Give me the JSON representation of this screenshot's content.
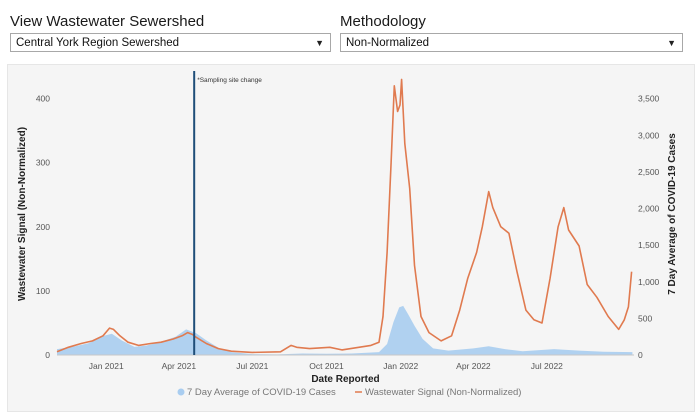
{
  "controls": {
    "sewershed_label": "View Wastewater Sewershed",
    "sewershed_value": "Central York Region Sewershed",
    "methodology_label": "Methodology",
    "methodology_value": "Non-Normalized"
  },
  "colors": {
    "cases": "#a9cdf0",
    "wastewater": "#e07a4f",
    "event_line": "#1f4e79"
  },
  "chart_data": {
    "type": "line",
    "title": "",
    "xlabel": "Date Reported",
    "ylabel": "Wastewater Signal (Non-Normalized)",
    "y2label": "7 Day Average of COVID-19 Cases",
    "x_ticks": [
      "Jan 2021",
      "Apr 2021",
      "Jul 2021",
      "Oct 2021",
      "Jan 2022",
      "Apr 2022",
      "Jul 2022"
    ],
    "y_ticks": [
      "0",
      "100",
      "200",
      "300",
      "400"
    ],
    "y2_ticks": [
      "0",
      "500",
      "1,000",
      "1,500",
      "2,000",
      "2,500",
      "3,000",
      "3,500"
    ],
    "ylim": [
      0,
      440
    ],
    "y2lim": [
      0,
      3850
    ],
    "annotation": {
      "date": "2021-04-20",
      "text": "*Sampling site change"
    },
    "legend": {
      "position": "bottom"
    },
    "series": [
      {
        "name": "7 Day Average of COVID-19 Cases",
        "kind": "area",
        "axis": "right",
        "points": [
          [
            "2020-11-01",
            80
          ],
          [
            "2020-11-20",
            110
          ],
          [
            "2020-12-10",
            160
          ],
          [
            "2020-12-28",
            260
          ],
          [
            "2021-01-08",
            290
          ],
          [
            "2021-01-20",
            200
          ],
          [
            "2021-02-05",
            110
          ],
          [
            "2021-02-20",
            130
          ],
          [
            "2021-03-10",
            180
          ],
          [
            "2021-03-28",
            250
          ],
          [
            "2021-04-10",
            350
          ],
          [
            "2021-04-22",
            300
          ],
          [
            "2021-05-05",
            200
          ],
          [
            "2021-05-20",
            100
          ],
          [
            "2021-06-05",
            40
          ],
          [
            "2021-07-01",
            12
          ],
          [
            "2021-08-01",
            8
          ],
          [
            "2021-09-01",
            20
          ],
          [
            "2021-10-01",
            18
          ],
          [
            "2021-11-01",
            20
          ],
          [
            "2021-12-05",
            40
          ],
          [
            "2021-12-15",
            150
          ],
          [
            "2021-12-23",
            450
          ],
          [
            "2021-12-30",
            650
          ],
          [
            "2022-01-04",
            670
          ],
          [
            "2022-01-10",
            560
          ],
          [
            "2022-01-18",
            400
          ],
          [
            "2022-01-28",
            220
          ],
          [
            "2022-02-10",
            90
          ],
          [
            "2022-03-01",
            60
          ],
          [
            "2022-04-01",
            90
          ],
          [
            "2022-04-20",
            120
          ],
          [
            "2022-05-10",
            80
          ],
          [
            "2022-06-01",
            50
          ],
          [
            "2022-07-10",
            80
          ],
          [
            "2022-08-10",
            60
          ],
          [
            "2022-09-10",
            45
          ],
          [
            "2022-10-15",
            40
          ]
        ]
      },
      {
        "name": "Wastewater Signal (Non-Normalized)",
        "kind": "line",
        "axis": "left",
        "points": [
          [
            "2020-11-01",
            5
          ],
          [
            "2020-11-15",
            12
          ],
          [
            "2020-12-01",
            18
          ],
          [
            "2020-12-15",
            22
          ],
          [
            "2020-12-28",
            30
          ],
          [
            "2021-01-05",
            42
          ],
          [
            "2021-01-10",
            40
          ],
          [
            "2021-01-18",
            30
          ],
          [
            "2021-01-28",
            20
          ],
          [
            "2021-02-10",
            15
          ],
          [
            "2021-02-25",
            18
          ],
          [
            "2021-03-10",
            20
          ],
          [
            "2021-03-25",
            25
          ],
          [
            "2021-04-05",
            30
          ],
          [
            "2021-04-12",
            35
          ],
          [
            "2021-04-18",
            32
          ],
          [
            "2021-04-22",
            28
          ],
          [
            "2021-05-05",
            18
          ],
          [
            "2021-05-20",
            10
          ],
          [
            "2021-06-05",
            6
          ],
          [
            "2021-07-01",
            4
          ],
          [
            "2021-08-05",
            5
          ],
          [
            "2021-08-18",
            15
          ],
          [
            "2021-08-25",
            12
          ],
          [
            "2021-09-10",
            10
          ],
          [
            "2021-10-05",
            12
          ],
          [
            "2021-10-20",
            8
          ],
          [
            "2021-11-10",
            12
          ],
          [
            "2021-11-25",
            15
          ],
          [
            "2021-12-05",
            20
          ],
          [
            "2021-12-10",
            60
          ],
          [
            "2021-12-15",
            160
          ],
          [
            "2021-12-20",
            300
          ],
          [
            "2021-12-24",
            420
          ],
          [
            "2021-12-28",
            380
          ],
          [
            "2021-12-31",
            390
          ],
          [
            "2022-01-02",
            430
          ],
          [
            "2022-01-06",
            330
          ],
          [
            "2022-01-12",
            260
          ],
          [
            "2022-01-18",
            140
          ],
          [
            "2022-01-26",
            60
          ],
          [
            "2022-02-05",
            35
          ],
          [
            "2022-02-20",
            22
          ],
          [
            "2022-03-05",
            30
          ],
          [
            "2022-03-15",
            70
          ],
          [
            "2022-03-25",
            120
          ],
          [
            "2022-04-05",
            160
          ],
          [
            "2022-04-12",
            200
          ],
          [
            "2022-04-20",
            255
          ],
          [
            "2022-04-25",
            230
          ],
          [
            "2022-05-05",
            200
          ],
          [
            "2022-05-15",
            190
          ],
          [
            "2022-05-25",
            130
          ],
          [
            "2022-06-05",
            70
          ],
          [
            "2022-06-15",
            55
          ],
          [
            "2022-06-25",
            50
          ],
          [
            "2022-07-05",
            120
          ],
          [
            "2022-07-15",
            200
          ],
          [
            "2022-07-22",
            230
          ],
          [
            "2022-07-28",
            195
          ],
          [
            "2022-08-10",
            170
          ],
          [
            "2022-08-20",
            110
          ],
          [
            "2022-09-01",
            90
          ],
          [
            "2022-09-15",
            60
          ],
          [
            "2022-09-28",
            40
          ],
          [
            "2022-10-05",
            55
          ],
          [
            "2022-10-10",
            75
          ],
          [
            "2022-10-14",
            130
          ]
        ]
      }
    ]
  }
}
